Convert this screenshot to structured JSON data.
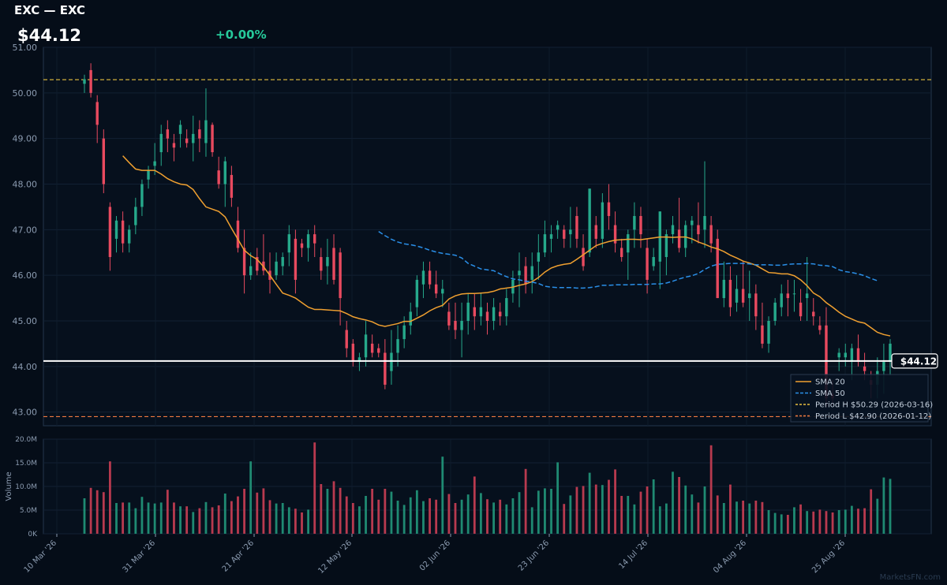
{
  "header": {
    "title": "EXC — EXC",
    "price": "$44.12",
    "change": "+0.00%"
  },
  "watermark": "MarketsFN.com",
  "colors": {
    "background": "#050d18",
    "up": "#26a98b",
    "down": "#e84a5f",
    "sma20": "#f0a030",
    "sma50": "#2a8fe8",
    "period_high": "#e8c040",
    "period_low": "#f07a40",
    "last_price": "#ffffff"
  },
  "chart_data": {
    "type": "candlestick",
    "price_axis": {
      "ylim": [
        42.7,
        51.0
      ],
      "ticks": [
        "43.00",
        "44.00",
        "45.00",
        "46.00",
        "47.00",
        "48.00",
        "49.00",
        "50.00",
        "51.00"
      ]
    },
    "volume_axis": {
      "label": "Volume",
      "ylim": [
        0,
        20
      ],
      "ticks": [
        "0K",
        "5.0M",
        "10.0M",
        "15.0M",
        "20.0M"
      ]
    },
    "x_ticks": [
      "10 Mar '26",
      "31 Mar '26",
      "21 Apr '26",
      "12 May '26",
      "02 Jun '26",
      "23 Jun '26",
      "14 Jul '26",
      "04 Aug '26",
      "25 Aug '26"
    ],
    "last_price": {
      "value": 44.12,
      "label": "$44.12"
    },
    "period_high": {
      "value": 50.29,
      "label": "Period H $50.29 (2026-03-16)"
    },
    "period_low": {
      "value": 42.9,
      "label": "Period L $42.90 (2026-01-12)"
    },
    "legend": {
      "position": "bottom-right",
      "items": [
        "SMA 20",
        "SMA 50",
        "Period H $50.29 (2026-03-16)",
        "Period L $42.90 (2026-01-12)"
      ]
    },
    "candles": [
      {
        "o": 50.2,
        "h": 50.4,
        "l": 50.0,
        "c": 50.3,
        "v": 7.5
      },
      {
        "o": 50.5,
        "h": 50.65,
        "l": 49.9,
        "c": 50.0,
        "v": 9.7
      },
      {
        "o": 49.8,
        "h": 49.95,
        "l": 48.9,
        "c": 49.3,
        "v": 9.2
      },
      {
        "o": 49.0,
        "h": 49.2,
        "l": 47.8,
        "c": 48.0,
        "v": 8.8
      },
      {
        "o": 47.5,
        "h": 47.6,
        "l": 46.1,
        "c": 46.4,
        "v": 15.3
      },
      {
        "o": 46.8,
        "h": 47.3,
        "l": 46.5,
        "c": 47.2,
        "v": 6.5
      },
      {
        "o": 47.2,
        "h": 47.4,
        "l": 46.5,
        "c": 46.7,
        "v": 6.6
      },
      {
        "o": 46.7,
        "h": 47.1,
        "l": 46.5,
        "c": 47.0,
        "v": 6.6
      },
      {
        "o": 47.1,
        "h": 47.7,
        "l": 46.9,
        "c": 47.5,
        "v": 5.4
      },
      {
        "o": 47.5,
        "h": 48.1,
        "l": 47.3,
        "c": 48.0,
        "v": 7.8
      },
      {
        "o": 48.1,
        "h": 48.4,
        "l": 47.9,
        "c": 48.3,
        "v": 6.6
      },
      {
        "o": 48.4,
        "h": 48.9,
        "l": 48.2,
        "c": 48.5,
        "v": 6.4
      },
      {
        "o": 48.7,
        "h": 49.3,
        "l": 48.4,
        "c": 49.1,
        "v": 6.6
      },
      {
        "o": 49.2,
        "h": 49.4,
        "l": 48.7,
        "c": 49.0,
        "v": 9.3
      },
      {
        "o": 48.9,
        "h": 49.1,
        "l": 48.5,
        "c": 48.8,
        "v": 6.6
      },
      {
        "o": 49.1,
        "h": 49.4,
        "l": 48.8,
        "c": 49.3,
        "v": 5.8
      },
      {
        "o": 49.0,
        "h": 49.2,
        "l": 48.8,
        "c": 48.9,
        "v": 5.8
      },
      {
        "o": 48.9,
        "h": 49.5,
        "l": 48.5,
        "c": 49.1,
        "v": 4.6
      },
      {
        "o": 49.2,
        "h": 49.4,
        "l": 48.7,
        "c": 49.0,
        "v": 5.4
      },
      {
        "o": 48.9,
        "h": 50.1,
        "l": 48.6,
        "c": 49.4,
        "v": 6.7
      },
      {
        "o": 49.3,
        "h": 49.35,
        "l": 48.6,
        "c": 48.7,
        "v": 5.6
      },
      {
        "o": 48.3,
        "h": 48.6,
        "l": 47.9,
        "c": 48.0,
        "v": 6.0
      },
      {
        "o": 48.0,
        "h": 48.6,
        "l": 47.5,
        "c": 48.5,
        "v": 8.5
      },
      {
        "o": 48.2,
        "h": 48.4,
        "l": 47.5,
        "c": 47.7,
        "v": 6.9
      },
      {
        "o": 47.2,
        "h": 47.5,
        "l": 46.5,
        "c": 46.6,
        "v": 7.9
      },
      {
        "o": 46.6,
        "h": 47.0,
        "l": 45.6,
        "c": 46.0,
        "v": 9.5
      },
      {
        "o": 46.0,
        "h": 46.5,
        "l": 45.9,
        "c": 46.2,
        "v": 15.3
      },
      {
        "o": 46.4,
        "h": 46.6,
        "l": 46.0,
        "c": 46.1,
        "v": 8.7
      },
      {
        "o": 46.3,
        "h": 46.9,
        "l": 46.0,
        "c": 46.1,
        "v": 9.6
      },
      {
        "o": 46.1,
        "h": 46.5,
        "l": 45.6,
        "c": 45.9,
        "v": 7.1
      },
      {
        "o": 46.0,
        "h": 46.5,
        "l": 45.9,
        "c": 46.3,
        "v": 6.4
      },
      {
        "o": 46.2,
        "h": 46.5,
        "l": 46.0,
        "c": 46.4,
        "v": 6.5
      },
      {
        "o": 46.5,
        "h": 47.1,
        "l": 46.2,
        "c": 46.9,
        "v": 5.6
      },
      {
        "o": 46.8,
        "h": 47.0,
        "l": 45.6,
        "c": 45.9,
        "v": 5.3
      },
      {
        "o": 46.7,
        "h": 46.8,
        "l": 46.4,
        "c": 46.6,
        "v": 4.5
      },
      {
        "o": 46.6,
        "h": 47.0,
        "l": 46.3,
        "c": 46.9,
        "v": 5.1
      },
      {
        "o": 46.9,
        "h": 47.1,
        "l": 46.4,
        "c": 46.7,
        "v": 19.3
      },
      {
        "o": 46.4,
        "h": 46.6,
        "l": 45.9,
        "c": 46.1,
        "v": 10.5
      },
      {
        "o": 46.2,
        "h": 46.8,
        "l": 45.8,
        "c": 46.4,
        "v": 9.5
      },
      {
        "o": 46.6,
        "h": 46.9,
        "l": 45.8,
        "c": 45.9,
        "v": 11.1
      },
      {
        "o": 46.5,
        "h": 46.6,
        "l": 44.9,
        "c": 45.5,
        "v": 9.7
      },
      {
        "o": 44.8,
        "h": 45.0,
        "l": 44.2,
        "c": 44.4,
        "v": 7.9
      },
      {
        "o": 44.5,
        "h": 44.6,
        "l": 44.0,
        "c": 44.1,
        "v": 6.5
      },
      {
        "o": 44.1,
        "h": 44.3,
        "l": 43.9,
        "c": 44.2,
        "v": 5.8
      },
      {
        "o": 44.2,
        "h": 45.0,
        "l": 44.0,
        "c": 44.7,
        "v": 8.0
      },
      {
        "o": 44.5,
        "h": 44.7,
        "l": 44.2,
        "c": 44.3,
        "v": 9.5
      },
      {
        "o": 44.4,
        "h": 44.5,
        "l": 44.2,
        "c": 44.3,
        "v": 7.2
      },
      {
        "o": 44.3,
        "h": 44.6,
        "l": 43.5,
        "c": 43.6,
        "v": 9.5
      },
      {
        "o": 43.9,
        "h": 44.8,
        "l": 43.6,
        "c": 44.3,
        "v": 8.9
      },
      {
        "o": 44.3,
        "h": 44.9,
        "l": 44.0,
        "c": 44.6,
        "v": 7.0
      },
      {
        "o": 44.6,
        "h": 45.1,
        "l": 44.4,
        "c": 44.9,
        "v": 6.1
      },
      {
        "o": 44.9,
        "h": 45.4,
        "l": 44.7,
        "c": 45.2,
        "v": 7.7
      },
      {
        "o": 45.3,
        "h": 46.0,
        "l": 45.1,
        "c": 45.9,
        "v": 9.2
      },
      {
        "o": 45.8,
        "h": 46.3,
        "l": 45.5,
        "c": 46.1,
        "v": 6.9
      },
      {
        "o": 46.1,
        "h": 46.3,
        "l": 45.7,
        "c": 45.8,
        "v": 7.5
      },
      {
        "o": 45.8,
        "h": 46.1,
        "l": 45.5,
        "c": 45.6,
        "v": 7.2
      },
      {
        "o": 45.6,
        "h": 45.9,
        "l": 45.3,
        "c": 45.7,
        "v": 16.3
      },
      {
        "o": 45.2,
        "h": 45.4,
        "l": 44.8,
        "c": 44.9,
        "v": 8.4
      },
      {
        "o": 45.0,
        "h": 45.4,
        "l": 44.6,
        "c": 44.8,
        "v": 6.5
      },
      {
        "o": 44.8,
        "h": 45.4,
        "l": 44.2,
        "c": 45.0,
        "v": 7.2
      },
      {
        "o": 45.0,
        "h": 45.6,
        "l": 44.7,
        "c": 45.4,
        "v": 8.3
      },
      {
        "o": 45.3,
        "h": 45.6,
        "l": 44.8,
        "c": 45.1,
        "v": 12.1
      },
      {
        "o": 45.1,
        "h": 45.6,
        "l": 44.9,
        "c": 45.3,
        "v": 8.6
      },
      {
        "o": 45.2,
        "h": 45.4,
        "l": 44.7,
        "c": 45.0,
        "v": 7.3
      },
      {
        "o": 45.0,
        "h": 45.5,
        "l": 44.8,
        "c": 45.3,
        "v": 6.6
      },
      {
        "o": 45.2,
        "h": 45.4,
        "l": 44.9,
        "c": 45.1,
        "v": 7.2
      },
      {
        "o": 45.1,
        "h": 45.7,
        "l": 44.9,
        "c": 45.5,
        "v": 6.2
      },
      {
        "o": 45.6,
        "h": 46.1,
        "l": 45.4,
        "c": 45.9,
        "v": 7.5
      },
      {
        "o": 46.0,
        "h": 46.5,
        "l": 45.3,
        "c": 46.1,
        "v": 8.8
      },
      {
        "o": 46.2,
        "h": 46.4,
        "l": 45.6,
        "c": 45.8,
        "v": 13.7
      },
      {
        "o": 45.9,
        "h": 46.5,
        "l": 45.6,
        "c": 46.2,
        "v": 5.6
      },
      {
        "o": 46.3,
        "h": 46.9,
        "l": 45.9,
        "c": 46.5,
        "v": 9.1
      },
      {
        "o": 46.5,
        "h": 47.2,
        "l": 46.4,
        "c": 46.9,
        "v": 9.6
      },
      {
        "o": 46.8,
        "h": 47.1,
        "l": 46.5,
        "c": 46.9,
        "v": 9.5
      },
      {
        "o": 47.0,
        "h": 47.2,
        "l": 46.8,
        "c": 47.1,
        "v": 15.1
      },
      {
        "o": 47.0,
        "h": 47.1,
        "l": 46.6,
        "c": 46.8,
        "v": 6.3
      },
      {
        "o": 46.9,
        "h": 47.5,
        "l": 46.6,
        "c": 47.0,
        "v": 8.1
      },
      {
        "o": 47.3,
        "h": 47.5,
        "l": 46.6,
        "c": 46.8,
        "v": 9.9
      },
      {
        "o": 46.6,
        "h": 46.9,
        "l": 46.1,
        "c": 46.2,
        "v": 10.1
      },
      {
        "o": 46.5,
        "h": 47.9,
        "l": 46.4,
        "c": 47.9,
        "v": 12.9
      },
      {
        "o": 47.1,
        "h": 47.3,
        "l": 46.6,
        "c": 46.8,
        "v": 10.4
      },
      {
        "o": 46.8,
        "h": 47.8,
        "l": 46.6,
        "c": 47.6,
        "v": 10.3
      },
      {
        "o": 47.6,
        "h": 48.0,
        "l": 47.0,
        "c": 47.3,
        "v": 11.4
      },
      {
        "o": 47.1,
        "h": 47.4,
        "l": 46.5,
        "c": 46.7,
        "v": 13.6
      },
      {
        "o": 46.6,
        "h": 46.8,
        "l": 46.3,
        "c": 46.4,
        "v": 8.0
      },
      {
        "o": 46.5,
        "h": 47.0,
        "l": 45.9,
        "c": 46.9,
        "v": 8.0
      },
      {
        "o": 47.0,
        "h": 47.6,
        "l": 46.6,
        "c": 47.3,
        "v": 6.2
      },
      {
        "o": 47.3,
        "h": 47.5,
        "l": 46.6,
        "c": 46.9,
        "v": 8.9
      },
      {
        "o": 46.6,
        "h": 46.8,
        "l": 45.6,
        "c": 45.9,
        "v": 10.0
      },
      {
        "o": 46.2,
        "h": 46.6,
        "l": 46.1,
        "c": 46.4,
        "v": 11.5
      },
      {
        "o": 46.3,
        "h": 47.4,
        "l": 45.7,
        "c": 47.4,
        "v": 5.8
      },
      {
        "o": 46.4,
        "h": 47.0,
        "l": 46.0,
        "c": 46.9,
        "v": 6.4
      },
      {
        "o": 46.9,
        "h": 47.3,
        "l": 46.7,
        "c": 47.1,
        "v": 13.1
      },
      {
        "o": 47.0,
        "h": 47.7,
        "l": 46.5,
        "c": 46.6,
        "v": 12.0
      },
      {
        "o": 46.6,
        "h": 47.2,
        "l": 46.4,
        "c": 47.1,
        "v": 10.2
      },
      {
        "o": 47.1,
        "h": 47.3,
        "l": 46.7,
        "c": 47.2,
        "v": 8.3
      },
      {
        "o": 47.1,
        "h": 47.6,
        "l": 46.7,
        "c": 46.9,
        "v": 6.6
      },
      {
        "o": 47.0,
        "h": 48.5,
        "l": 46.6,
        "c": 47.3,
        "v": 10.0
      },
      {
        "o": 47.1,
        "h": 47.3,
        "l": 46.5,
        "c": 46.7,
        "v": 18.7
      },
      {
        "o": 46.8,
        "h": 47.0,
        "l": 45.5,
        "c": 45.5,
        "v": 8.1
      },
      {
        "o": 45.5,
        "h": 46.3,
        "l": 45.3,
        "c": 45.9,
        "v": 6.5
      },
      {
        "o": 45.9,
        "h": 46.2,
        "l": 45.1,
        "c": 45.3,
        "v": 10.4
      },
      {
        "o": 45.4,
        "h": 46.0,
        "l": 45.2,
        "c": 45.7,
        "v": 6.8
      },
      {
        "o": 45.7,
        "h": 46.3,
        "l": 45.3,
        "c": 45.4,
        "v": 7.0
      },
      {
        "o": 45.5,
        "h": 46.1,
        "l": 45.0,
        "c": 45.6,
        "v": 6.4
      },
      {
        "o": 45.6,
        "h": 45.8,
        "l": 44.8,
        "c": 45.1,
        "v": 7.0
      },
      {
        "o": 44.9,
        "h": 45.4,
        "l": 44.4,
        "c": 44.5,
        "v": 6.7
      },
      {
        "o": 44.5,
        "h": 45.1,
        "l": 44.3,
        "c": 45.0,
        "v": 5.0
      },
      {
        "o": 45.0,
        "h": 45.5,
        "l": 44.9,
        "c": 45.4,
        "v": 4.4
      },
      {
        "o": 45.3,
        "h": 45.8,
        "l": 45.1,
        "c": 45.6,
        "v": 4.1
      },
      {
        "o": 45.6,
        "h": 45.9,
        "l": 45.1,
        "c": 45.5,
        "v": 4.0
      },
      {
        "o": 45.6,
        "h": 45.9,
        "l": 45.2,
        "c": 45.6,
        "v": 5.6
      },
      {
        "o": 45.4,
        "h": 45.7,
        "l": 45.0,
        "c": 45.1,
        "v": 6.2
      },
      {
        "o": 45.5,
        "h": 46.4,
        "l": 45.0,
        "c": 45.6,
        "v": 4.8
      },
      {
        "o": 45.2,
        "h": 45.5,
        "l": 44.9,
        "c": 45.1,
        "v": 4.7
      },
      {
        "o": 44.9,
        "h": 45.1,
        "l": 44.7,
        "c": 44.8,
        "v": 5.1
      },
      {
        "o": 44.9,
        "h": 45.3,
        "l": 43.1,
        "c": 43.3,
        "v": 4.8
      },
      {
        "o": 43.4,
        "h": 43.7,
        "l": 43.2,
        "c": 43.3,
        "v": 4.5
      },
      {
        "o": 44.2,
        "h": 44.4,
        "l": 43.9,
        "c": 44.3,
        "v": 5.0
      },
      {
        "o": 44.2,
        "h": 44.5,
        "l": 44.0,
        "c": 44.3,
        "v": 5.1
      },
      {
        "o": 44.1,
        "h": 44.5,
        "l": 43.7,
        "c": 44.4,
        "v": 5.9
      },
      {
        "o": 44.4,
        "h": 44.7,
        "l": 44.0,
        "c": 44.1,
        "v": 5.3
      },
      {
        "o": 44.0,
        "h": 44.3,
        "l": 43.7,
        "c": 43.9,
        "v": 5.4
      },
      {
        "o": 43.7,
        "h": 43.9,
        "l": 43.3,
        "c": 43.6,
        "v": 9.4
      },
      {
        "o": 43.6,
        "h": 44.2,
        "l": 43.3,
        "c": 43.9,
        "v": 7.4
      },
      {
        "o": 43.9,
        "h": 44.5,
        "l": 43.4,
        "c": 44.1,
        "v": 11.9
      },
      {
        "o": 44.1,
        "h": 44.6,
        "l": 43.8,
        "c": 44.5,
        "v": 11.6
      }
    ],
    "sma20": [
      48.62,
      48.47,
      48.33,
      48.3,
      48.3,
      48.3,
      48.22,
      48.12,
      48.05,
      48.0,
      47.98,
      47.88,
      47.68,
      47.5,
      47.45,
      47.4,
      47.28,
      47.03,
      46.79,
      46.55,
      46.43,
      46.35,
      46.19,
      46.0,
      45.8,
      45.61,
      45.56,
      45.5,
      45.4,
      45.3,
      45.25,
      45.25,
      45.24,
      45.23,
      45.22,
      45.16,
      45.09,
      45.05,
      45.02,
      44.98,
      44.91,
      44.88,
      44.91,
      44.94,
      44.99,
      44.99,
      45.06,
      45.13,
      45.22,
      45.29,
      45.34,
      45.48,
      45.55,
      45.59,
      45.6,
      45.6,
      45.61,
      45.62,
      45.65,
      45.7,
      45.72,
      45.74,
      45.78,
      45.81,
      45.86,
      45.95,
      46.07,
      46.16,
      46.21,
      46.24,
      46.26,
      46.35,
      46.45,
      46.55,
      46.65,
      46.7,
      46.74,
      46.77,
      46.78,
      46.79,
      46.79,
      46.78,
      46.8,
      46.82,
      46.84,
      46.84,
      46.83,
      46.84,
      46.84,
      46.8,
      46.73,
      46.68,
      46.62,
      46.58,
      46.52,
      46.44,
      46.38,
      46.31,
      46.27,
      46.22,
      46.14,
      46.06,
      46.05,
      46.03,
      46.03,
      45.99,
      45.9,
      45.77,
      45.61,
      45.53,
      45.4,
      45.3,
      45.19,
      45.1,
      45.04,
      44.98,
      44.95,
      44.85,
      44.75,
      44.7,
      44.67
    ],
    "sma50": [
      46.96,
      46.87,
      46.79,
      46.73,
      46.69,
      46.67,
      46.64,
      46.6,
      46.55,
      46.51,
      46.48,
      46.46,
      46.44,
      46.38,
      46.26,
      46.2,
      46.14,
      46.12,
      46.1,
      46.03,
      45.97,
      45.92,
      45.9,
      45.87,
      45.85,
      45.82,
      45.76,
      45.74,
      45.73,
      45.73,
      45.73,
      45.72,
      45.72,
      45.73,
      45.75,
      45.78,
      45.78,
      45.79,
      45.79,
      45.79,
      45.8,
      45.8,
      45.8,
      45.81,
      45.81,
      45.83,
      45.87,
      45.92,
      45.96,
      45.99,
      46.04,
      46.13,
      46.2,
      46.24,
      46.25,
      46.26,
      46.26,
      46.26,
      46.25,
      46.23,
      46.23,
      46.23,
      46.22,
      46.22,
      46.24,
      46.25,
      46.25,
      46.26,
      46.25,
      46.22,
      46.21,
      46.19,
      46.12,
      46.08,
      46.06,
      46.03,
      45.99,
      45.93,
      45.88
    ],
    "sma50_start_index": 46
  }
}
